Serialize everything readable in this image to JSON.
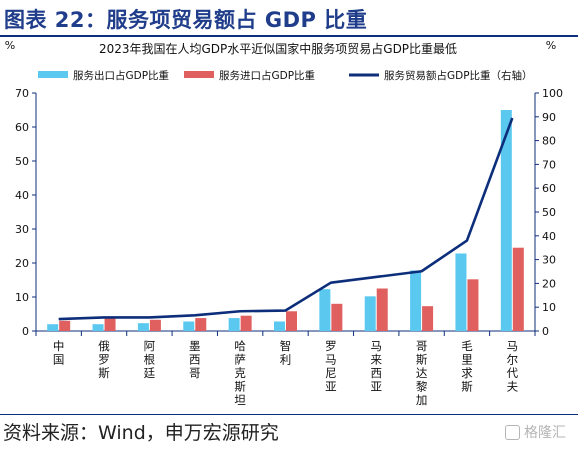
{
  "figure": {
    "title": "图表 22：服务项贸易额占 GDP 比重",
    "source": "资料来源：Wind，申万宏源研究",
    "watermark": "格隆汇"
  },
  "chart_data": {
    "type": "bar",
    "title": "2023年我国在人均GDP水平近似国家中服务项贸易占GDP比重最低",
    "y_unit_left": "%",
    "y_unit_right": "%",
    "categories": [
      "中国",
      "俄罗斯",
      "阿根廷",
      "墨西哥",
      "哈萨克斯坦",
      "智利",
      "罗马尼亚",
      "马来西亚",
      "哥斯达黎加",
      "毛里求斯",
      "马尔代夫"
    ],
    "ylim_left": [
      0,
      70
    ],
    "yticks_left": [
      0,
      10,
      20,
      30,
      40,
      50,
      60,
      70
    ],
    "ylim_right": [
      0,
      100
    ],
    "yticks_right": [
      0,
      10,
      20,
      30,
      40,
      50,
      60,
      70,
      80,
      90,
      100
    ],
    "legend_position": "top",
    "series": [
      {
        "name": "服务出口占GDP比重",
        "type": "bar",
        "axis": "left",
        "color": "#5bc8f0",
        "values": [
          2.0,
          2.0,
          2.3,
          2.8,
          3.8,
          2.8,
          12.3,
          10.2,
          17.8,
          22.8,
          65.0
        ]
      },
      {
        "name": "服务进口占GDP比重",
        "type": "bar",
        "axis": "left",
        "color": "#e06060",
        "values": [
          3.0,
          3.7,
          3.3,
          3.8,
          4.5,
          5.8,
          8.0,
          12.5,
          7.3,
          15.2,
          24.5
        ]
      },
      {
        "name": "服务贸易额占GDP比重（右轴）",
        "type": "line",
        "axis": "right",
        "color": "#0d2e7a",
        "values": [
          5.0,
          5.7,
          5.7,
          6.6,
          8.3,
          8.6,
          20.3,
          22.7,
          25.1,
          38.0,
          89.5
        ]
      }
    ]
  }
}
